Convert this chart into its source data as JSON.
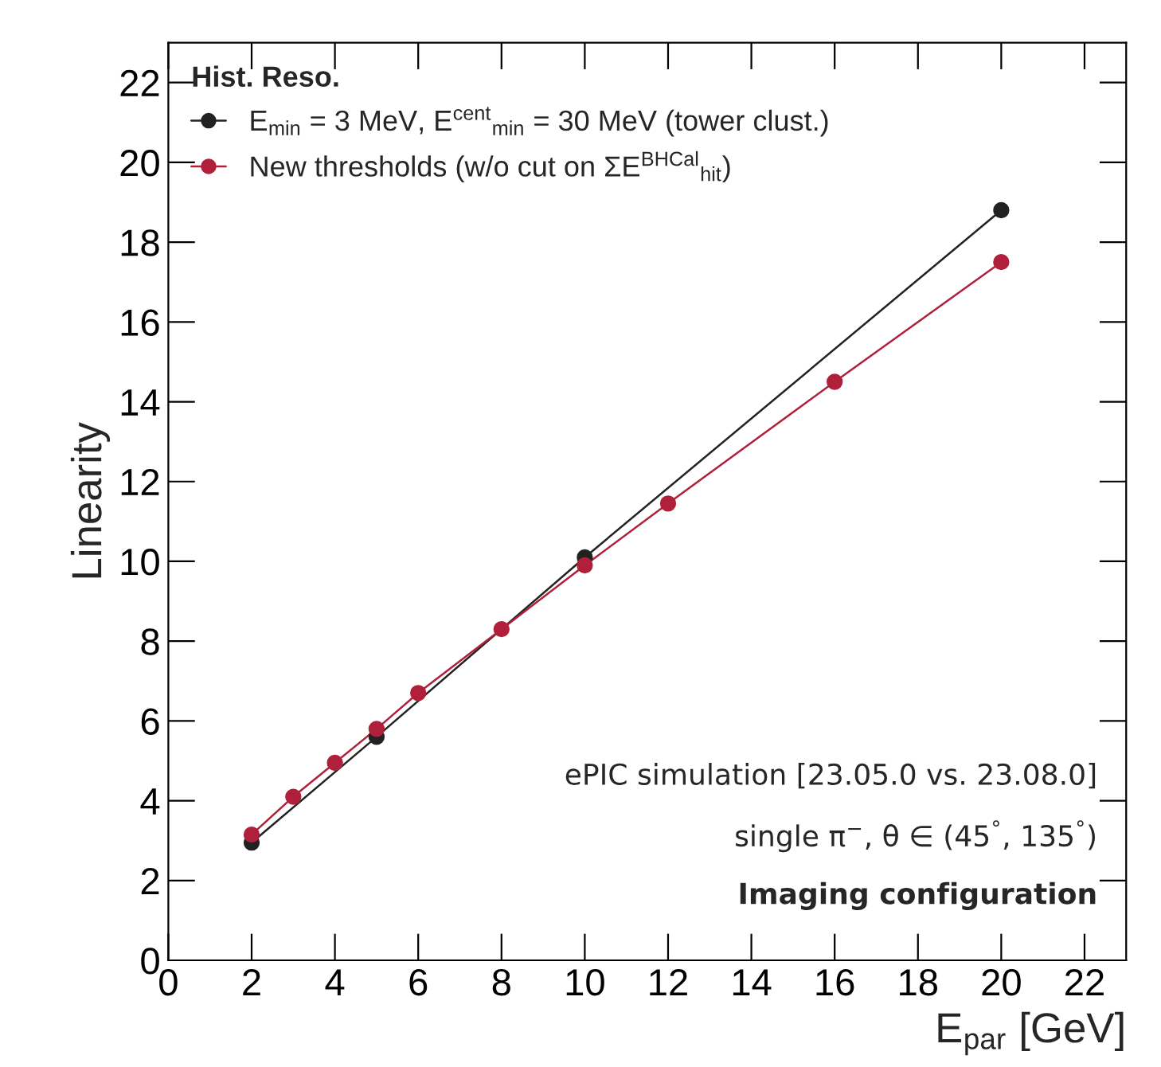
{
  "chart_data": {
    "type": "line",
    "xlabel": "E$_{par}$ [GeV]",
    "ylabel": "Linearity",
    "legend_title": "Hist. Reso.",
    "legend": "top left",
    "xlim": [
      0,
      23
    ],
    "ylim": [
      0,
      23
    ],
    "xticks": [
      0,
      2,
      4,
      6,
      8,
      10,
      12,
      14,
      16,
      18,
      20,
      22
    ],
    "yticks": [
      0,
      2,
      4,
      6,
      8,
      10,
      12,
      14,
      16,
      18,
      20,
      22
    ],
    "grid": false,
    "line_style": "solid",
    "series": [
      {
        "name": "E$_{min}$ = 3 MeV, E$^{cent}$$_{min}$ = 30 MeV (tower clust.)",
        "color": "#222222",
        "marker": "circle",
        "x": [
          2,
          5,
          10,
          20
        ],
        "values": [
          2.95,
          5.6,
          10.1,
          18.8
        ]
      },
      {
        "name": "New thresholds (w/o cut on ΣE$^{BHCal}$$_{hit}$)",
        "color": "#b0203a",
        "marker": "circle",
        "x": [
          2,
          3,
          4,
          5,
          6,
          8,
          10,
          12,
          16,
          20
        ],
        "values": [
          3.15,
          4.1,
          4.95,
          5.8,
          6.7,
          8.3,
          9.9,
          11.45,
          14.5,
          17.5
        ]
      }
    ],
    "annotations": [
      "ePIC simulation [23.05.0 vs. 23.08.0]",
      "single π$^{−}$, θ ∈ (45$^{°}$, 135$^{°}$)",
      "Imaging configuration"
    ]
  }
}
